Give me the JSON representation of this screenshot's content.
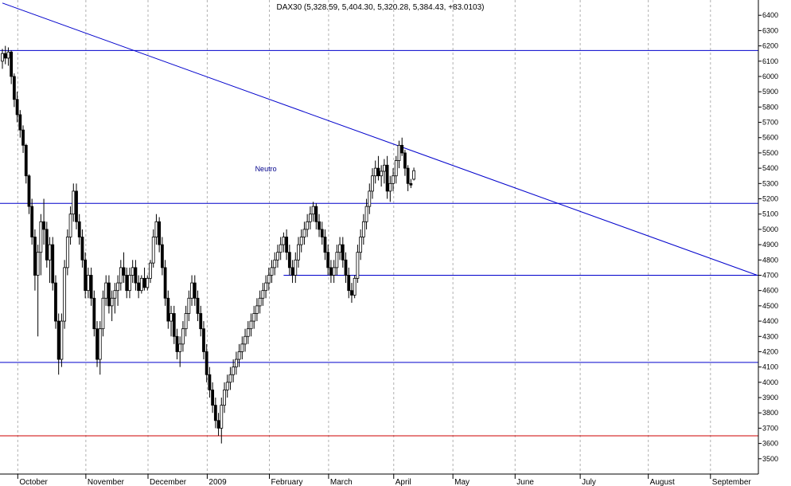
{
  "chart_data": {
    "type": "candlestick",
    "title": "DAX30 (5,328.59, 5,404.30, 5,320.28, 5,384.43, +83.0103)",
    "ylim": [
      3400,
      6500
    ],
    "y_ticks": [
      3500,
      3600,
      3700,
      3800,
      3900,
      4000,
      4100,
      4200,
      4300,
      4400,
      4500,
      4600,
      4700,
      4800,
      4900,
      5000,
      5100,
      5200,
      5300,
      5400,
      5500,
      5600,
      5700,
      5800,
      5900,
      6000,
      6100,
      6200,
      6300,
      6400
    ],
    "y_axis_position": "right",
    "grid": "vertical-dotted",
    "months": [
      {
        "label": "October",
        "index": 6
      },
      {
        "label": "November",
        "index": 29
      },
      {
        "label": "December",
        "index": 50
      },
      {
        "label": "2009",
        "index": 70
      },
      {
        "label": "February",
        "index": 91
      },
      {
        "label": "March",
        "index": 111
      },
      {
        "label": "April",
        "index": 133
      },
      {
        "label": "May",
        "index": 153
      },
      {
        "label": "June",
        "index": 174
      },
      {
        "label": "July",
        "index": 196
      },
      {
        "label": "August",
        "index": 219
      },
      {
        "label": "September",
        "index": 240
      }
    ],
    "horizontal_lines": [
      {
        "value": 6170,
        "color": "#0000cc"
      },
      {
        "value": 5170,
        "color": "#0000cc"
      },
      {
        "value": 4700,
        "color": "#0000cc",
        "from_index": 95
      },
      {
        "value": 4130,
        "color": "#0000cc"
      },
      {
        "value": 3650,
        "color": "#cc0000"
      }
    ],
    "trend_line": {
      "from": {
        "index": 0,
        "value": 6480
      },
      "to": {
        "index": 255,
        "value": 4700
      },
      "color": "#0000cc"
    },
    "annotations": [
      {
        "text": "Neutro",
        "index": 89,
        "value": 5380
      }
    ],
    "ohlc": [
      [
        6100,
        6180,
        6050,
        6150
      ],
      [
        6150,
        6200,
        6080,
        6120
      ],
      [
        6120,
        6190,
        6070,
        6160
      ],
      [
        6160,
        6170,
        5950,
        6000
      ],
      [
        6000,
        6020,
        5800,
        5850
      ],
      [
        5850,
        5900,
        5700,
        5750
      ],
      [
        5750,
        5780,
        5600,
        5650
      ],
      [
        5650,
        5680,
        5500,
        5550
      ],
      [
        5550,
        5560,
        5300,
        5350
      ],
      [
        5350,
        5360,
        5100,
        5150
      ],
      [
        5150,
        5200,
        4900,
        4950
      ],
      [
        4950,
        5000,
        4600,
        4700
      ],
      [
        4700,
        4900,
        4300,
        4850
      ],
      [
        4850,
        5100,
        4700,
        5050
      ],
      [
        5050,
        5200,
        4900,
        5000
      ],
      [
        5000,
        5050,
        4750,
        4800
      ],
      [
        4800,
        4950,
        4650,
        4900
      ],
      [
        4900,
        4950,
        4600,
        4650
      ],
      [
        4650,
        4700,
        4350,
        4400
      ],
      [
        4400,
        4450,
        4050,
        4150
      ],
      [
        4150,
        4450,
        4100,
        4400
      ],
      [
        4400,
        4800,
        4350,
        4750
      ],
      [
        4750,
        5000,
        4700,
        4950
      ],
      [
        4950,
        5150,
        4900,
        5100
      ],
      [
        5100,
        5300,
        5050,
        5250
      ],
      [
        5250,
        5300,
        5000,
        5050
      ],
      [
        5050,
        5100,
        4900,
        4950
      ],
      [
        4950,
        5000,
        4750,
        4800
      ],
      [
        4800,
        4850,
        4550,
        4600
      ],
      [
        4600,
        4750,
        4550,
        4700
      ],
      [
        4700,
        4750,
        4500,
        4550
      ],
      [
        4550,
        4600,
        4300,
        4350
      ],
      [
        4350,
        4400,
        4100,
        4150
      ],
      [
        4150,
        4400,
        4050,
        4350
      ],
      [
        4350,
        4600,
        4300,
        4550
      ],
      [
        4550,
        4700,
        4500,
        4650
      ],
      [
        4650,
        4700,
        4450,
        4500
      ],
      [
        4500,
        4600,
        4400,
        4550
      ],
      [
        4550,
        4650,
        4450,
        4600
      ],
      [
        4600,
        4700,
        4500,
        4650
      ],
      [
        4650,
        4800,
        4600,
        4750
      ],
      [
        4750,
        4850,
        4650,
        4700
      ],
      [
        4700,
        4750,
        4550,
        4600
      ],
      [
        4600,
        4750,
        4550,
        4700
      ],
      [
        4700,
        4800,
        4650,
        4750
      ],
      [
        4750,
        4800,
        4600,
        4650
      ],
      [
        4650,
        4700,
        4550,
        4600
      ],
      [
        4600,
        4700,
        4580,
        4680
      ],
      [
        4680,
        4750,
        4600,
        4620
      ],
      [
        4620,
        4700,
        4600,
        4680
      ],
      [
        4680,
        4800,
        4650,
        4780
      ],
      [
        4780,
        5000,
        4750,
        4950
      ],
      [
        4950,
        5100,
        4900,
        5050
      ],
      [
        5050,
        5080,
        4850,
        4900
      ],
      [
        4900,
        4950,
        4700,
        4750
      ],
      [
        4750,
        4800,
        4500,
        4550
      ],
      [
        4550,
        4600,
        4350,
        4400
      ],
      [
        4400,
        4500,
        4300,
        4450
      ],
      [
        4450,
        4500,
        4250,
        4300
      ],
      [
        4300,
        4350,
        4150,
        4200
      ],
      [
        4200,
        4300,
        4100,
        4250
      ],
      [
        4250,
        4400,
        4200,
        4350
      ],
      [
        4350,
        4500,
        4300,
        4450
      ],
      [
        4450,
        4600,
        4400,
        4550
      ],
      [
        4550,
        4700,
        4500,
        4650
      ],
      [
        4650,
        4700,
        4500,
        4550
      ],
      [
        4550,
        4600,
        4400,
        4450
      ],
      [
        4450,
        4500,
        4300,
        4350
      ],
      [
        4350,
        4400,
        4150,
        4200
      ],
      [
        4200,
        4250,
        4000,
        4050
      ],
      [
        4050,
        4100,
        3900,
        3950
      ],
      [
        3950,
        4000,
        3800,
        3850
      ],
      [
        3850,
        3900,
        3700,
        3750
      ],
      [
        3750,
        3800,
        3650,
        3700
      ],
      [
        3700,
        3900,
        3600,
        3850
      ],
      [
        3850,
        4000,
        3800,
        3950
      ],
      [
        3950,
        4050,
        3900,
        4000
      ],
      [
        4000,
        4100,
        3950,
        4050
      ],
      [
        4050,
        4150,
        4000,
        4100
      ],
      [
        4100,
        4200,
        4050,
        4150
      ],
      [
        4150,
        4250,
        4100,
        4200
      ],
      [
        4200,
        4300,
        4150,
        4250
      ],
      [
        4250,
        4350,
        4200,
        4300
      ],
      [
        4300,
        4400,
        4250,
        4350
      ],
      [
        4350,
        4450,
        4300,
        4400
      ],
      [
        4400,
        4500,
        4350,
        4450
      ],
      [
        4450,
        4550,
        4400,
        4500
      ],
      [
        4500,
        4600,
        4450,
        4550
      ],
      [
        4550,
        4650,
        4500,
        4600
      ],
      [
        4600,
        4700,
        4550,
        4650
      ],
      [
        4650,
        4750,
        4600,
        4700
      ],
      [
        4700,
        4800,
        4650,
        4750
      ],
      [
        4750,
        4850,
        4700,
        4800
      ],
      [
        4800,
        4900,
        4750,
        4850
      ],
      [
        4850,
        4950,
        4800,
        4900
      ],
      [
        4900,
        4980,
        4850,
        4950
      ],
      [
        4950,
        5000,
        4800,
        4850
      ],
      [
        4850,
        4900,
        4700,
        4750
      ],
      [
        4750,
        4800,
        4650,
        4700
      ],
      [
        4700,
        4850,
        4650,
        4800
      ],
      [
        4800,
        4950,
        4750,
        4900
      ],
      [
        4900,
        5000,
        4850,
        4950
      ],
      [
        4950,
        5050,
        4900,
        5000
      ],
      [
        5000,
        5100,
        4950,
        5050
      ],
      [
        5050,
        5150,
        5000,
        5100
      ],
      [
        5100,
        5180,
        5050,
        5150
      ],
      [
        5150,
        5170,
        5000,
        5050
      ],
      [
        5050,
        5100,
        4950,
        5000
      ],
      [
        5000,
        5050,
        4900,
        4950
      ],
      [
        4950,
        5000,
        4800,
        4850
      ],
      [
        4850,
        4900,
        4700,
        4750
      ],
      [
        4750,
        4800,
        4650,
        4700
      ],
      [
        4700,
        4800,
        4650,
        4750
      ],
      [
        4750,
        4900,
        4700,
        4850
      ],
      [
        4850,
        4950,
        4800,
        4900
      ],
      [
        4900,
        4950,
        4750,
        4800
      ],
      [
        4800,
        4850,
        4650,
        4700
      ],
      [
        4700,
        4750,
        4550,
        4600
      ],
      [
        4600,
        4650,
        4520,
        4570
      ],
      [
        4570,
        4700,
        4550,
        4680
      ],
      [
        4680,
        4900,
        4650,
        4850
      ],
      [
        4850,
        5000,
        4800,
        4950
      ],
      [
        4950,
        5100,
        4900,
        5050
      ],
      [
        5050,
        5200,
        5000,
        5150
      ],
      [
        5150,
        5300,
        5100,
        5250
      ],
      [
        5250,
        5400,
        5200,
        5350
      ],
      [
        5350,
        5450,
        5300,
        5400
      ],
      [
        5400,
        5480,
        5320,
        5350
      ],
      [
        5350,
        5420,
        5280,
        5380
      ],
      [
        5380,
        5460,
        5300,
        5420
      ],
      [
        5420,
        5480,
        5200,
        5250
      ],
      [
        5250,
        5350,
        5180,
        5300
      ],
      [
        5300,
        5400,
        5250,
        5350
      ],
      [
        5350,
        5480,
        5300,
        5450
      ],
      [
        5450,
        5580,
        5400,
        5550
      ],
      [
        5550,
        5600,
        5480,
        5500
      ],
      [
        5500,
        5520,
        5350,
        5400
      ],
      [
        5400,
        5420,
        5250,
        5300
      ],
      [
        5300,
        5330,
        5270,
        5290
      ],
      [
        5328,
        5404,
        5320,
        5384
      ]
    ]
  }
}
